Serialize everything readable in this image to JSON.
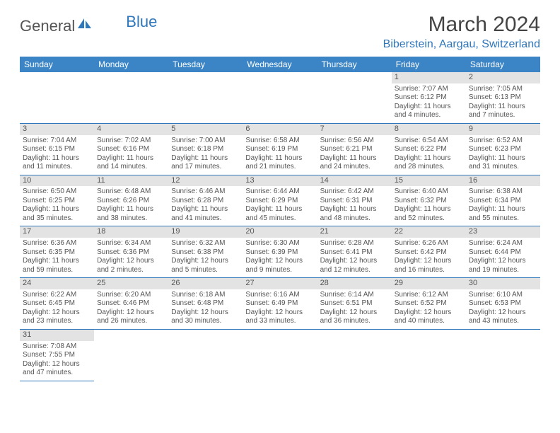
{
  "logo": {
    "text_general": "General",
    "text_blue": "Blue"
  },
  "header": {
    "month_title": "March 2024",
    "location": "Biberstein, Aargau, Switzerland"
  },
  "weekdays": [
    "Sunday",
    "Monday",
    "Tuesday",
    "Wednesday",
    "Thursday",
    "Friday",
    "Saturday"
  ],
  "colors": {
    "header_bg": "#3b85c7",
    "accent": "#2f77bb",
    "daynum_bg": "#e3e3e3",
    "text": "#555555"
  },
  "first_weekday_index": 5,
  "days": [
    {
      "n": 1,
      "sunrise": "7:07 AM",
      "sunset": "6:12 PM",
      "daylight": "11 hours and 4 minutes."
    },
    {
      "n": 2,
      "sunrise": "7:05 AM",
      "sunset": "6:13 PM",
      "daylight": "11 hours and 7 minutes."
    },
    {
      "n": 3,
      "sunrise": "7:04 AM",
      "sunset": "6:15 PM",
      "daylight": "11 hours and 11 minutes."
    },
    {
      "n": 4,
      "sunrise": "7:02 AM",
      "sunset": "6:16 PM",
      "daylight": "11 hours and 14 minutes."
    },
    {
      "n": 5,
      "sunrise": "7:00 AM",
      "sunset": "6:18 PM",
      "daylight": "11 hours and 17 minutes."
    },
    {
      "n": 6,
      "sunrise": "6:58 AM",
      "sunset": "6:19 PM",
      "daylight": "11 hours and 21 minutes."
    },
    {
      "n": 7,
      "sunrise": "6:56 AM",
      "sunset": "6:21 PM",
      "daylight": "11 hours and 24 minutes."
    },
    {
      "n": 8,
      "sunrise": "6:54 AM",
      "sunset": "6:22 PM",
      "daylight": "11 hours and 28 minutes."
    },
    {
      "n": 9,
      "sunrise": "6:52 AM",
      "sunset": "6:23 PM",
      "daylight": "11 hours and 31 minutes."
    },
    {
      "n": 10,
      "sunrise": "6:50 AM",
      "sunset": "6:25 PM",
      "daylight": "11 hours and 35 minutes."
    },
    {
      "n": 11,
      "sunrise": "6:48 AM",
      "sunset": "6:26 PM",
      "daylight": "11 hours and 38 minutes."
    },
    {
      "n": 12,
      "sunrise": "6:46 AM",
      "sunset": "6:28 PM",
      "daylight": "11 hours and 41 minutes."
    },
    {
      "n": 13,
      "sunrise": "6:44 AM",
      "sunset": "6:29 PM",
      "daylight": "11 hours and 45 minutes."
    },
    {
      "n": 14,
      "sunrise": "6:42 AM",
      "sunset": "6:31 PM",
      "daylight": "11 hours and 48 minutes."
    },
    {
      "n": 15,
      "sunrise": "6:40 AM",
      "sunset": "6:32 PM",
      "daylight": "11 hours and 52 minutes."
    },
    {
      "n": 16,
      "sunrise": "6:38 AM",
      "sunset": "6:34 PM",
      "daylight": "11 hours and 55 minutes."
    },
    {
      "n": 17,
      "sunrise": "6:36 AM",
      "sunset": "6:35 PM",
      "daylight": "11 hours and 59 minutes."
    },
    {
      "n": 18,
      "sunrise": "6:34 AM",
      "sunset": "6:36 PM",
      "daylight": "12 hours and 2 minutes."
    },
    {
      "n": 19,
      "sunrise": "6:32 AM",
      "sunset": "6:38 PM",
      "daylight": "12 hours and 5 minutes."
    },
    {
      "n": 20,
      "sunrise": "6:30 AM",
      "sunset": "6:39 PM",
      "daylight": "12 hours and 9 minutes."
    },
    {
      "n": 21,
      "sunrise": "6:28 AM",
      "sunset": "6:41 PM",
      "daylight": "12 hours and 12 minutes."
    },
    {
      "n": 22,
      "sunrise": "6:26 AM",
      "sunset": "6:42 PM",
      "daylight": "12 hours and 16 minutes."
    },
    {
      "n": 23,
      "sunrise": "6:24 AM",
      "sunset": "6:44 PM",
      "daylight": "12 hours and 19 minutes."
    },
    {
      "n": 24,
      "sunrise": "6:22 AM",
      "sunset": "6:45 PM",
      "daylight": "12 hours and 23 minutes."
    },
    {
      "n": 25,
      "sunrise": "6:20 AM",
      "sunset": "6:46 PM",
      "daylight": "12 hours and 26 minutes."
    },
    {
      "n": 26,
      "sunrise": "6:18 AM",
      "sunset": "6:48 PM",
      "daylight": "12 hours and 30 minutes."
    },
    {
      "n": 27,
      "sunrise": "6:16 AM",
      "sunset": "6:49 PM",
      "daylight": "12 hours and 33 minutes."
    },
    {
      "n": 28,
      "sunrise": "6:14 AM",
      "sunset": "6:51 PM",
      "daylight": "12 hours and 36 minutes."
    },
    {
      "n": 29,
      "sunrise": "6:12 AM",
      "sunset": "6:52 PM",
      "daylight": "12 hours and 40 minutes."
    },
    {
      "n": 30,
      "sunrise": "6:10 AM",
      "sunset": "6:53 PM",
      "daylight": "12 hours and 43 minutes."
    },
    {
      "n": 31,
      "sunrise": "7:08 AM",
      "sunset": "7:55 PM",
      "daylight": "12 hours and 47 minutes."
    }
  ],
  "labels": {
    "sunrise": "Sunrise:",
    "sunset": "Sunset:",
    "daylight": "Daylight:"
  }
}
